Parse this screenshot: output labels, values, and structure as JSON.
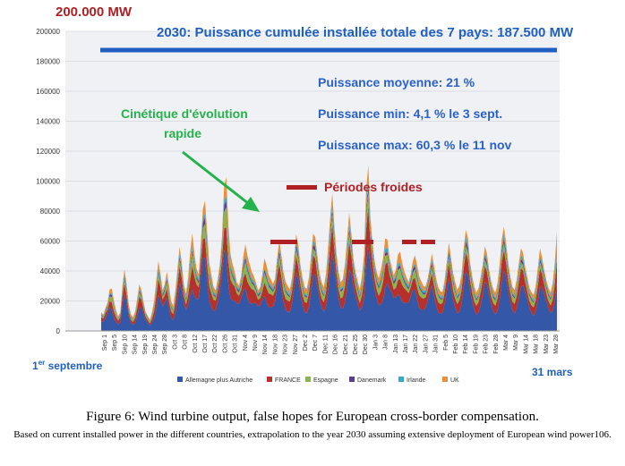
{
  "figure": {
    "caption": "Figure 6: Wind turbine output, false hopes for European cross-border compensation.",
    "subcaption": "Based on current installed power in the different countries, extrapolation to the year 2030 assuming extensive deployment of European wind power106."
  },
  "colors": {
    "background": "#ffffff",
    "plot_bg": "#f0f1f5",
    "title_blue": "#1f5fbf",
    "target_line": "#1f5fbf",
    "annot_blue": "#2a62c9",
    "green_annot": "#24b24a",
    "cold_red": "#b01f24",
    "corner_red": "#b01f24",
    "corner_blue": "#1f5fbf"
  },
  "annotations": {
    "corner_top": "200.000 MW",
    "headline": "2030: Puissance cumulée installée totale des 7 pays: 187.500 MW",
    "avg": "Puissance moyenne: 21 %",
    "min": "Puissance min: 4,1 % le 3 sept.",
    "max": "Puissance max: 60,3 % le 11 nov",
    "kinetic_line1": "Cinétique d'évolution",
    "kinetic_line2": "rapide",
    "cold_label": "Périodes froides",
    "start_label_pre": "1",
    "start_label_sup": "er",
    "start_label_post": " septembre",
    "end_label": "31 mars"
  },
  "chart_data": {
    "type": "area",
    "stacked": true,
    "ylim": [
      0,
      200000
    ],
    "yticks": [
      0,
      20000,
      40000,
      60000,
      80000,
      100000,
      120000,
      140000,
      160000,
      180000,
      200000
    ],
    "target_value": 187500,
    "x_tick_labels": [
      "Sep 1",
      "Sep 5",
      "Sep 10",
      "Sep 14",
      "Sep 19",
      "Sep 24",
      "Sep 28",
      "Oct 3",
      "Oct 8",
      "Oct 12",
      "Oct 17",
      "Oct 22",
      "Oct 26",
      "Oct 31",
      "Nov 4",
      "Nov 9",
      "Nov 14",
      "Nov 18",
      "Nov 23",
      "Nov 27",
      "Dec 2",
      "Dec 7",
      "Dec 11",
      "Dec 16",
      "Dec 21",
      "Dec 25",
      "Dec 30",
      "Jan 3",
      "Jan 8",
      "Jan 13",
      "Jan 17",
      "Jan 22",
      "Jan 27",
      "Jan 31",
      "Feb 5",
      "Feb 10",
      "Feb 14",
      "Feb 19",
      "Feb 23",
      "Feb 28",
      "Mar 4",
      "Mar 9",
      "Mar 14",
      "Mar 18",
      "Mar 23",
      "Mar 28"
    ],
    "series": [
      {
        "name": "Allemagne plus Autriche",
        "color": "#3457a8"
      },
      {
        "name": "FRANCE",
        "color": "#b6312b"
      },
      {
        "name": "Espagne",
        "color": "#8ab64e"
      },
      {
        "name": "Danemark",
        "color": "#5b3f8c"
      },
      {
        "name": "Irlande",
        "color": "#36a9c8"
      },
      {
        "name": "UK",
        "color": "#e8903a"
      }
    ],
    "daily_total": [
      12000,
      10000,
      14000,
      18000,
      28000,
      30000,
      22000,
      15000,
      10000,
      12000,
      28000,
      38000,
      30000,
      18000,
      12000,
      10000,
      14000,
      22000,
      30000,
      25000,
      18000,
      12000,
      10000,
      8000,
      14000,
      22000,
      35000,
      45000,
      35000,
      25000,
      30000,
      40000,
      32000,
      22000,
      18000,
      28000,
      40000,
      52000,
      42000,
      30000,
      25000,
      38000,
      58000,
      70000,
      52000,
      40000,
      35000,
      55000,
      78000,
      88000,
      70000,
      50000,
      40000,
      30000,
      26000,
      32000,
      42000,
      60000,
      98000,
      110000,
      78000,
      55000,
      45000,
      38000,
      30000,
      28000,
      35000,
      50000,
      62000,
      55000,
      48000,
      40000,
      35000,
      30000,
      25000,
      28000,
      38000,
      52000,
      48000,
      40000,
      35000,
      30000,
      32000,
      45000,
      58000,
      52000,
      42000,
      36000,
      32000,
      28000,
      34000,
      45000,
      60000,
      55000,
      45000,
      38000,
      32000,
      30000,
      36000,
      48000,
      60000,
      58000,
      48000,
      40000,
      35000,
      32000,
      40000,
      55000,
      72000,
      85000,
      65000,
      50000,
      40000,
      35000,
      38000,
      48000,
      62000,
      75000,
      60000,
      45000,
      38000,
      34000,
      30000,
      40000,
      55000,
      95000,
      105000,
      70000,
      55000,
      45000,
      40000,
      38000,
      45000,
      52000,
      62000,
      58000,
      45000,
      40000,
      36000,
      42000,
      55000,
      58000,
      48000,
      40000,
      34000,
      30000,
      35000,
      45000,
      52000,
      48000,
      40000,
      35000,
      30000,
      28000,
      32000,
      40000,
      50000,
      45000,
      38000,
      32000,
      28000,
      26000,
      32000,
      42000,
      55000,
      48000,
      40000,
      35000,
      30000,
      32000,
      38000,
      52000,
      62000,
      58000,
      45000,
      38000,
      32000,
      28000,
      30000,
      36000,
      42000,
      52000,
      48000,
      40000,
      34000,
      30000,
      28000,
      34000,
      45000,
      58000,
      64000,
      55000,
      45000,
      38000,
      32000,
      30000,
      36000,
      45000,
      52000,
      48000,
      40000,
      35000,
      30000,
      28000,
      26000,
      32000,
      42000,
      52000,
      45000,
      38000,
      33000,
      30000,
      28000,
      35000,
      48000,
      66000
    ]
  }
}
